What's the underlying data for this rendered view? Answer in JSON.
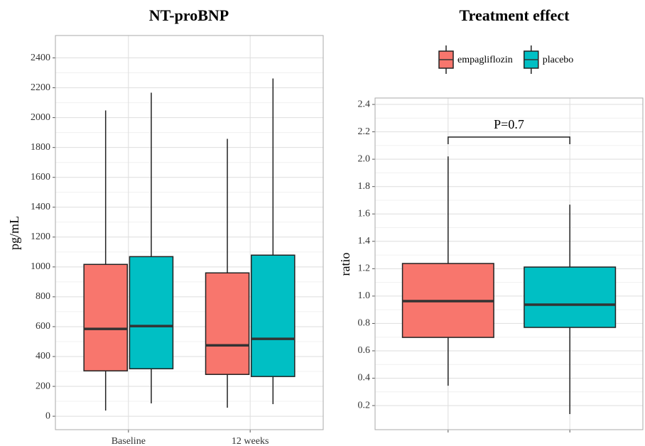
{
  "chart_data": [
    {
      "type": "box",
      "title": "NT-proBNP",
      "y_label": "pg/mL",
      "categories": [
        "Baseline",
        "12 weeks"
      ],
      "series": [
        {
          "name": "empagliflozin",
          "color": "#F8766D",
          "values": [
            {
              "min": 38,
              "q1": 304,
              "median": 585,
              "q3": 1017,
              "max": 2048
            },
            {
              "min": 57,
              "q1": 280,
              "median": 475,
              "q3": 960,
              "max": 1858
            }
          ]
        },
        {
          "name": "placebo",
          "color": "#00BFC4",
          "values": [
            {
              "min": 86,
              "q1": 318,
              "median": 604,
              "q3": 1069,
              "max": 2167
            },
            {
              "min": 81,
              "q1": 266,
              "median": 518,
              "q3": 1079,
              "max": 2262
            }
          ]
        }
      ],
      "ylim": [
        -90,
        2550
      ],
      "yticks": [
        0,
        200,
        400,
        600,
        800,
        1000,
        1200,
        1400,
        1600,
        1800,
        2000,
        2200,
        2400
      ],
      "grid": true
    },
    {
      "type": "box",
      "title": "Treatment effect",
      "y_label": "ratio",
      "legend": "top",
      "categories": [
        null,
        null
      ],
      "series": [
        {
          "name": "empagliflozin",
          "color": "#F8766D",
          "values": [
            {
              "min": 0.345,
              "q1": 0.698,
              "median": 0.963,
              "q3": 1.238,
              "max": 2.02
            },
            null
          ]
        },
        {
          "name": "placebo",
          "color": "#00BFC4",
          "values": [
            null,
            {
              "min": 0.138,
              "q1": 0.771,
              "median": 0.937,
              "q3": 1.212,
              "max": 1.668
            }
          ]
        }
      ],
      "annotation": "P=0.7",
      "ylim": [
        0.024,
        2.447
      ],
      "yticks": [
        0.2,
        0.4,
        0.6,
        0.8,
        {
          "value": 1,
          "label": "1.0"
        },
        1.2,
        1.4,
        1.6,
        1.8,
        {
          "value": 2,
          "label": "2.0"
        },
        2.2,
        2.4
      ],
      "grid": true
    }
  ]
}
